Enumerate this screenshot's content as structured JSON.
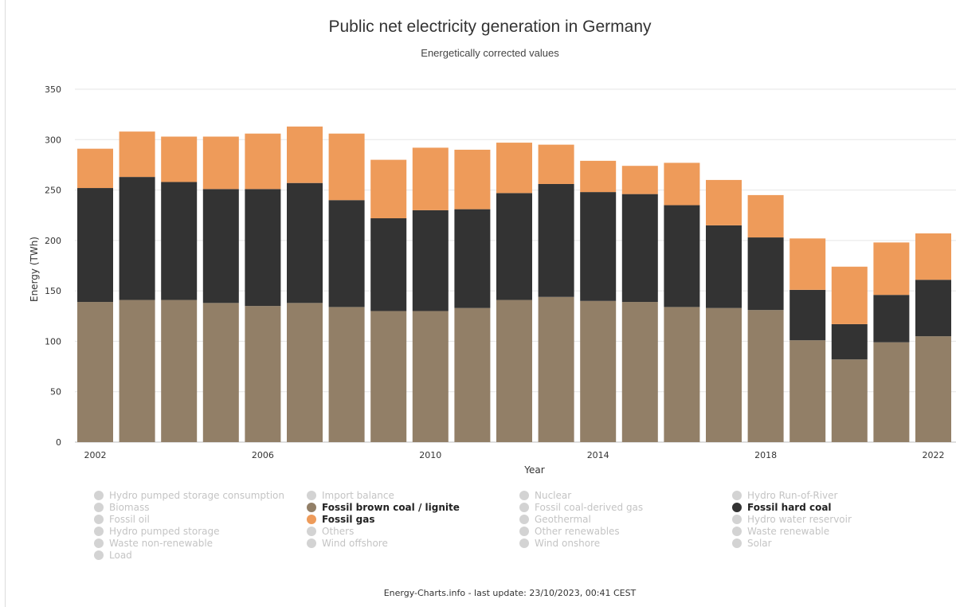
{
  "header": {
    "title": "Public net electricity generation in Germany",
    "subtitle": "Energetically corrected values"
  },
  "footer": {
    "text": "Energy-Charts.info - last update: 23/10/2023, 00:41 CEST"
  },
  "legend": {
    "items": [
      {
        "label": "Hydro pumped storage consumption",
        "active": false
      },
      {
        "label": "Import balance",
        "active": false
      },
      {
        "label": "Nuclear",
        "active": false
      },
      {
        "label": "Hydro Run-of-River",
        "active": false
      },
      {
        "label": "Biomass",
        "active": false
      },
      {
        "label": "Fossil brown coal / lignite",
        "active": true,
        "color": "#927f67"
      },
      {
        "label": "Fossil coal-derived gas",
        "active": false
      },
      {
        "label": "Fossil hard coal",
        "active": true,
        "color": "#333333"
      },
      {
        "label": "Fossil oil",
        "active": false
      },
      {
        "label": "Fossil gas",
        "active": true,
        "color": "#ee9b5a"
      },
      {
        "label": "Geothermal",
        "active": false
      },
      {
        "label": "Hydro water reservoir",
        "active": false
      },
      {
        "label": "Hydro pumped storage",
        "active": false
      },
      {
        "label": "Others",
        "active": false
      },
      {
        "label": "Other renewables",
        "active": false
      },
      {
        "label": "Waste renewable",
        "active": false
      },
      {
        "label": "Waste non-renewable",
        "active": false
      },
      {
        "label": "Wind offshore",
        "active": false
      },
      {
        "label": "Wind onshore",
        "active": false
      },
      {
        "label": "Solar",
        "active": false
      },
      {
        "label": "Load",
        "active": false
      }
    ],
    "inactive_color": "#d3d3d3"
  },
  "chart_data": {
    "type": "bar",
    "stacked": true,
    "title": "Public net electricity generation in Germany",
    "subtitle": "Energetically corrected values",
    "xlabel": "Year",
    "ylabel": "Energy (TWh)",
    "ylim": [
      0,
      350
    ],
    "yticks": [
      0,
      50,
      100,
      150,
      200,
      250,
      300,
      350
    ],
    "xtick_labels": [
      "2002",
      "2006",
      "2010",
      "2014",
      "2018",
      "2022"
    ],
    "grid": true,
    "categories": [
      "2002",
      "2003",
      "2004",
      "2005",
      "2006",
      "2007",
      "2008",
      "2009",
      "2010",
      "2011",
      "2012",
      "2013",
      "2014",
      "2015",
      "2016",
      "2017",
      "2018",
      "2019",
      "2020",
      "2021",
      "2022"
    ],
    "series": [
      {
        "name": "Fossil brown coal / lignite",
        "color": "#927f67",
        "values": [
          139,
          141,
          141,
          138,
          135,
          138,
          134,
          130,
          130,
          133,
          141,
          144,
          140,
          139,
          134,
          133,
          131,
          101,
          82,
          99,
          105
        ]
      },
      {
        "name": "Fossil hard coal",
        "color": "#333333",
        "values": [
          113,
          122,
          117,
          113,
          116,
          119,
          106,
          92,
          100,
          98,
          106,
          112,
          108,
          107,
          101,
          82,
          72,
          50,
          35,
          47,
          56
        ]
      },
      {
        "name": "Fossil gas",
        "color": "#ee9b5a",
        "values": [
          39,
          45,
          45,
          52,
          55,
          56,
          66,
          58,
          62,
          59,
          50,
          39,
          31,
          28,
          42,
          45,
          42,
          51,
          57,
          52,
          46
        ]
      }
    ]
  }
}
